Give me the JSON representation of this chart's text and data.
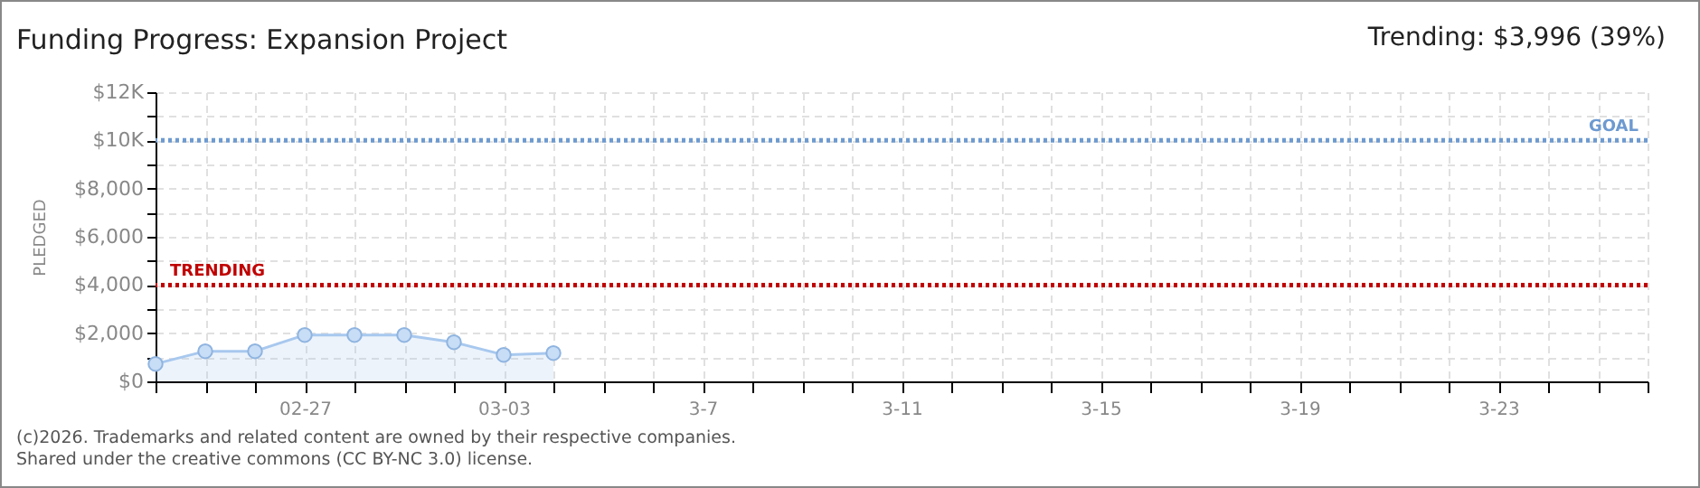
{
  "chart_data": {
    "type": "area",
    "title": "Funding Progress: Expansion Project",
    "subtitle": "Trending: $3,996 (39%)",
    "ylabel": "PLEDGED",
    "x": [
      "2026-02-24",
      "2026-02-25",
      "2026-02-26",
      "2026-02-27",
      "2026-02-28",
      "2026-03-01",
      "2026-03-02",
      "2026-03-03",
      "2026-03-04"
    ],
    "series": [
      {
        "color": "#a8c8ee",
        "values": [
          725,
          1250,
          1250,
          1925,
          1925,
          1925,
          1625,
          1100,
          1175
        ]
      }
    ],
    "marker": "circle",
    "line_style": "solid",
    "grid": true,
    "xlim": [
      "2026-02-24",
      "2026-03-26"
    ],
    "xticks": [
      {
        "value": "2026-02-24",
        "label": null
      },
      {
        "value": "2026-02-25",
        "label": null
      },
      {
        "value": "2026-02-26",
        "label": null
      },
      {
        "value": "2026-02-27",
        "label": "02-27"
      },
      {
        "value": "2026-02-28",
        "label": null
      },
      {
        "value": "2026-03-01",
        "label": null
      },
      {
        "value": "2026-03-02",
        "label": null
      },
      {
        "value": "2026-03-03",
        "label": "03-03"
      },
      {
        "value": "2026-03-04",
        "label": null
      },
      {
        "value": "2026-03-05",
        "label": null
      },
      {
        "value": "2026-03-06",
        "label": null
      },
      {
        "value": "2026-03-07",
        "label": "3-7"
      },
      {
        "value": "2026-03-08",
        "label": null
      },
      {
        "value": "2026-03-09",
        "label": null
      },
      {
        "value": "2026-03-10",
        "label": null
      },
      {
        "value": "2026-03-11",
        "label": "3-11"
      },
      {
        "value": "2026-03-12",
        "label": null
      },
      {
        "value": "2026-03-13",
        "label": null
      },
      {
        "value": "2026-03-14",
        "label": null
      },
      {
        "value": "2026-03-15",
        "label": "3-15"
      },
      {
        "value": "2026-03-16",
        "label": null
      },
      {
        "value": "2026-03-17",
        "label": null
      },
      {
        "value": "2026-03-18",
        "label": null
      },
      {
        "value": "2026-03-19",
        "label": "3-19"
      },
      {
        "value": "2026-03-20",
        "label": null
      },
      {
        "value": "2026-03-21",
        "label": null
      },
      {
        "value": "2026-03-22",
        "label": null
      },
      {
        "value": "2026-03-23",
        "label": "3-23"
      },
      {
        "value": "2026-03-24",
        "label": null
      },
      {
        "value": "2026-03-25",
        "label": null
      },
      {
        "value": "2026-03-26",
        "label": null
      }
    ],
    "ylim": [
      0,
      12000
    ],
    "yticks": [
      {
        "value": 0,
        "label": "$0"
      },
      {
        "value": 1000,
        "label": null
      },
      {
        "value": 2000,
        "label": "$2,000"
      },
      {
        "value": 3000,
        "label": null
      },
      {
        "value": 4000,
        "label": "$4,000"
      },
      {
        "value": 5000,
        "label": null
      },
      {
        "value": 6000,
        "label": "$6,000"
      },
      {
        "value": 7000,
        "label": null
      },
      {
        "value": 8000,
        "label": "$8,000"
      },
      {
        "value": 9000,
        "label": null
      },
      {
        "value": 10000,
        "label": "$10K"
      },
      {
        "value": 11000,
        "label": null
      },
      {
        "value": 12000,
        "label": "$12K"
      }
    ],
    "ref_lines": [
      {
        "axis": "y",
        "value": 10000,
        "label": "GOAL",
        "color": "#6d9ad0",
        "line_style": "dotted"
      },
      {
        "axis": "y",
        "value": 3996,
        "label": "TRENDING",
        "color": "#c00000",
        "line_style": "dotted"
      }
    ],
    "annotations": [
      "(c)2026. Trademarks and related content are owned by their respective companies.",
      "Shared under the creative commons (CC BY-NC 3.0) license."
    ]
  }
}
